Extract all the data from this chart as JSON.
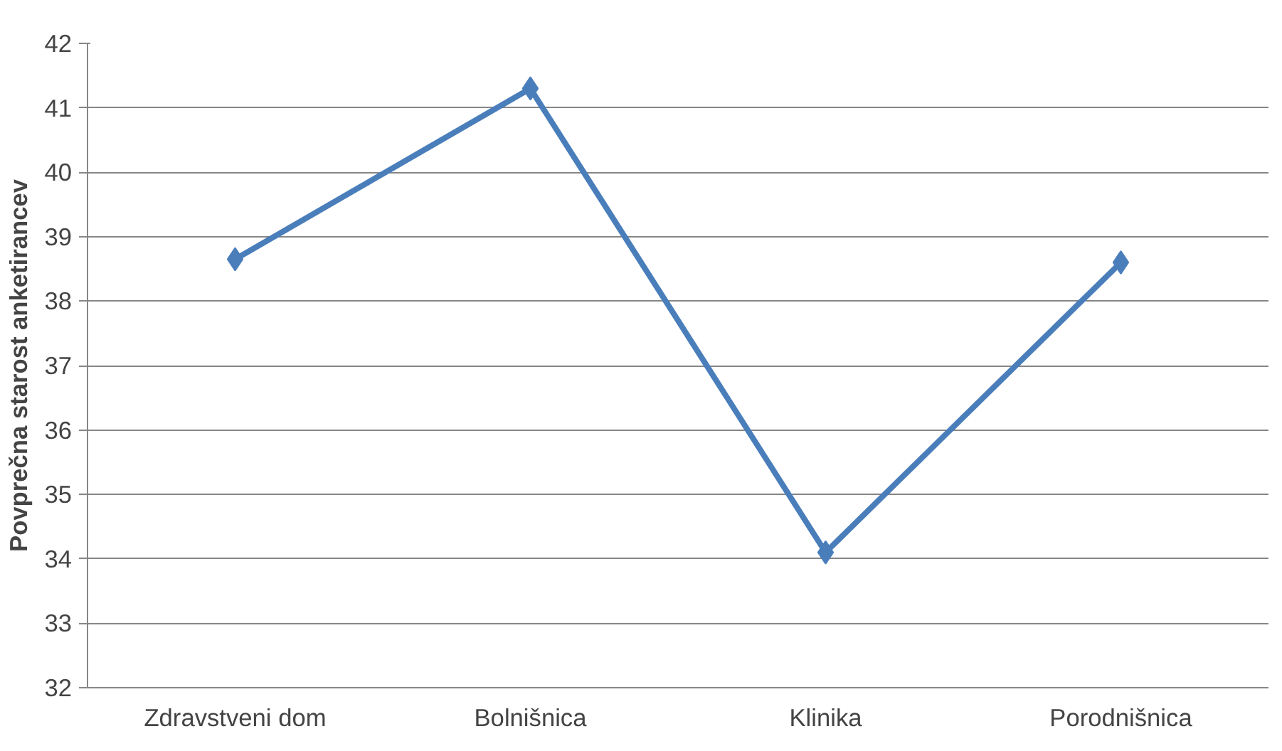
{
  "chart_data": {
    "type": "line",
    "ylabel": "Povprečna starost anketirancev",
    "categories": [
      "Zdravstveni dom",
      "Bolnišnica",
      "Klinika",
      "Porodnišnica"
    ],
    "series": [
      {
        "color": "#4a7ebb",
        "values": [
          38.65,
          41.3,
          34.1,
          38.6
        ]
      }
    ],
    "ylim": [
      32,
      42
    ],
    "yticks": [
      32,
      33,
      34,
      35,
      36,
      37,
      38,
      39,
      40,
      41,
      42
    ],
    "grid": "y",
    "marker": "diamond",
    "line_style": "solid"
  }
}
